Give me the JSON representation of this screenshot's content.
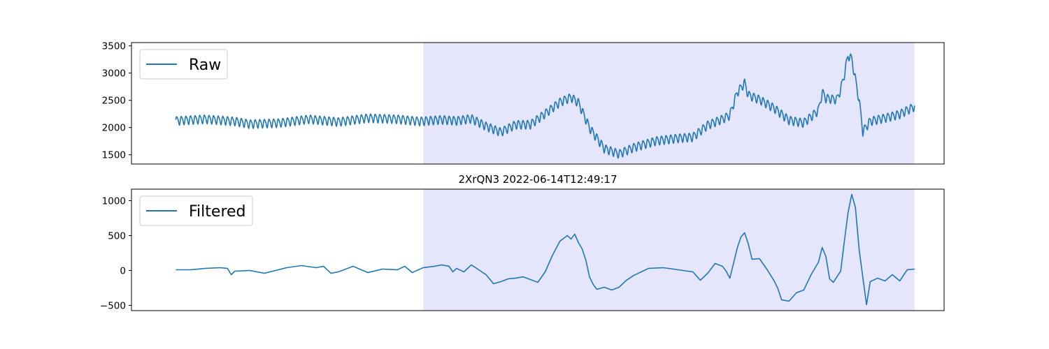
{
  "figure": {
    "line_color": "#1f77b4",
    "shade_color": "#e5e5fc"
  },
  "chart_data": [
    {
      "type": "line",
      "title": "",
      "xlabel": "",
      "ylabel": "",
      "legend": {
        "label": "Raw",
        "placement": "upper-left"
      },
      "ylim": [
        1330,
        3560
      ],
      "xlim": [
        -0.06,
        1.04
      ],
      "yticks": [
        1500,
        2000,
        2500,
        3000,
        3500
      ],
      "ytick_labels": [
        "1500",
        "2000",
        "2500",
        "3000",
        "3500"
      ],
      "x_ticks_visible": false,
      "grid": false,
      "highlight_span": [
        0.335,
        1.0
      ],
      "trend_keypoints": [
        [
          0.0,
          2130
        ],
        [
          0.04,
          2160
        ],
        [
          0.08,
          2120
        ],
        [
          0.1,
          2070
        ],
        [
          0.14,
          2090
        ],
        [
          0.18,
          2160
        ],
        [
          0.22,
          2110
        ],
        [
          0.26,
          2180
        ],
        [
          0.3,
          2160
        ],
        [
          0.33,
          2120
        ],
        [
          0.36,
          2150
        ],
        [
          0.38,
          2130
        ],
        [
          0.4,
          2170
        ],
        [
          0.42,
          2030
        ],
        [
          0.44,
          1920
        ],
        [
          0.46,
          2060
        ],
        [
          0.48,
          2060
        ],
        [
          0.5,
          2260
        ],
        [
          0.52,
          2470
        ],
        [
          0.535,
          2560
        ],
        [
          0.545,
          2460
        ],
        [
          0.56,
          2000
        ],
        [
          0.58,
          1620
        ],
        [
          0.6,
          1520
        ],
        [
          0.62,
          1640
        ],
        [
          0.65,
          1760
        ],
        [
          0.68,
          1810
        ],
        [
          0.7,
          1830
        ],
        [
          0.72,
          2050
        ],
        [
          0.74,
          2160
        ],
        [
          0.75,
          2230
        ],
        [
          0.76,
          2650
        ],
        [
          0.77,
          2820
        ],
        [
          0.775,
          2600
        ],
        [
          0.79,
          2520
        ],
        [
          0.81,
          2360
        ],
        [
          0.83,
          2140
        ],
        [
          0.85,
          2090
        ],
        [
          0.87,
          2320
        ],
        [
          0.875,
          2650
        ],
        [
          0.88,
          2540
        ],
        [
          0.895,
          2520
        ],
        [
          0.9,
          2700
        ],
        [
          0.905,
          2980
        ],
        [
          0.91,
          3330
        ],
        [
          0.915,
          3260
        ],
        [
          0.92,
          2880
        ],
        [
          0.925,
          2500
        ],
        [
          0.93,
          1930
        ],
        [
          0.94,
          2120
        ],
        [
          0.96,
          2180
        ],
        [
          0.98,
          2250
        ],
        [
          1.0,
          2390
        ]
      ],
      "oscillation_amplitude": 75,
      "oscillation_cycles": 160
    },
    {
      "type": "line",
      "title": "2XrQN3 2022-06-14T12:49:17",
      "xlabel": "",
      "ylabel": "",
      "legend": {
        "label": "Filtered",
        "placement": "upper-left"
      },
      "ylim": [
        -575,
        1165
      ],
      "xlim": [
        -0.06,
        1.04
      ],
      "yticks": [
        -500,
        0,
        500,
        1000
      ],
      "ytick_labels": [
        "−500",
        "0",
        "500",
        "1000"
      ],
      "x_ticks_visible": false,
      "grid": false,
      "highlight_span": [
        0.335,
        1.0
      ],
      "keypoints": [
        [
          0.0,
          10
        ],
        [
          0.02,
          10
        ],
        [
          0.04,
          30
        ],
        [
          0.06,
          40
        ],
        [
          0.07,
          30
        ],
        [
          0.075,
          -60
        ],
        [
          0.08,
          -10
        ],
        [
          0.1,
          0
        ],
        [
          0.12,
          -40
        ],
        [
          0.15,
          40
        ],
        [
          0.17,
          70
        ],
        [
          0.19,
          40
        ],
        [
          0.2,
          60
        ],
        [
          0.21,
          -40
        ],
        [
          0.22,
          -20
        ],
        [
          0.24,
          60
        ],
        [
          0.26,
          -30
        ],
        [
          0.28,
          20
        ],
        [
          0.3,
          10
        ],
        [
          0.31,
          60
        ],
        [
          0.32,
          -30
        ],
        [
          0.335,
          40
        ],
        [
          0.35,
          60
        ],
        [
          0.36,
          80
        ],
        [
          0.37,
          60
        ],
        [
          0.375,
          -20
        ],
        [
          0.38,
          30
        ],
        [
          0.39,
          -20
        ],
        [
          0.4,
          80
        ],
        [
          0.42,
          -60
        ],
        [
          0.43,
          -190
        ],
        [
          0.44,
          -160
        ],
        [
          0.45,
          -120
        ],
        [
          0.46,
          -110
        ],
        [
          0.47,
          -90
        ],
        [
          0.48,
          -130
        ],
        [
          0.49,
          -170
        ],
        [
          0.5,
          -20
        ],
        [
          0.51,
          220
        ],
        [
          0.52,
          420
        ],
        [
          0.53,
          500
        ],
        [
          0.535,
          450
        ],
        [
          0.54,
          520
        ],
        [
          0.545,
          400
        ],
        [
          0.55,
          310
        ],
        [
          0.555,
          150
        ],
        [
          0.56,
          -90
        ],
        [
          0.565,
          -200
        ],
        [
          0.57,
          -270
        ],
        [
          0.58,
          -240
        ],
        [
          0.59,
          -280
        ],
        [
          0.6,
          -240
        ],
        [
          0.61,
          -140
        ],
        [
          0.62,
          -70
        ],
        [
          0.64,
          30
        ],
        [
          0.66,
          40
        ],
        [
          0.68,
          10
        ],
        [
          0.7,
          -20
        ],
        [
          0.71,
          -140
        ],
        [
          0.72,
          -40
        ],
        [
          0.73,
          100
        ],
        [
          0.74,
          60
        ],
        [
          0.745,
          -10
        ],
        [
          0.75,
          -110
        ],
        [
          0.76,
          320
        ],
        [
          0.765,
          480
        ],
        [
          0.77,
          540
        ],
        [
          0.775,
          380
        ],
        [
          0.78,
          160
        ],
        [
          0.79,
          170
        ],
        [
          0.8,
          20
        ],
        [
          0.81,
          -150
        ],
        [
          0.815,
          -260
        ],
        [
          0.82,
          -420
        ],
        [
          0.83,
          -440
        ],
        [
          0.84,
          -320
        ],
        [
          0.85,
          -280
        ],
        [
          0.86,
          -60
        ],
        [
          0.87,
          120
        ],
        [
          0.875,
          330
        ],
        [
          0.88,
          200
        ],
        [
          0.885,
          -120
        ],
        [
          0.89,
          -170
        ],
        [
          0.9,
          -10
        ],
        [
          0.905,
          420
        ],
        [
          0.91,
          830
        ],
        [
          0.915,
          1090
        ],
        [
          0.92,
          900
        ],
        [
          0.925,
          300
        ],
        [
          0.93,
          -100
        ],
        [
          0.935,
          -490
        ],
        [
          0.94,
          -160
        ],
        [
          0.95,
          -110
        ],
        [
          0.96,
          -150
        ],
        [
          0.97,
          -60
        ],
        [
          0.98,
          -150
        ],
        [
          0.99,
          10
        ],
        [
          1.0,
          20
        ]
      ]
    }
  ]
}
